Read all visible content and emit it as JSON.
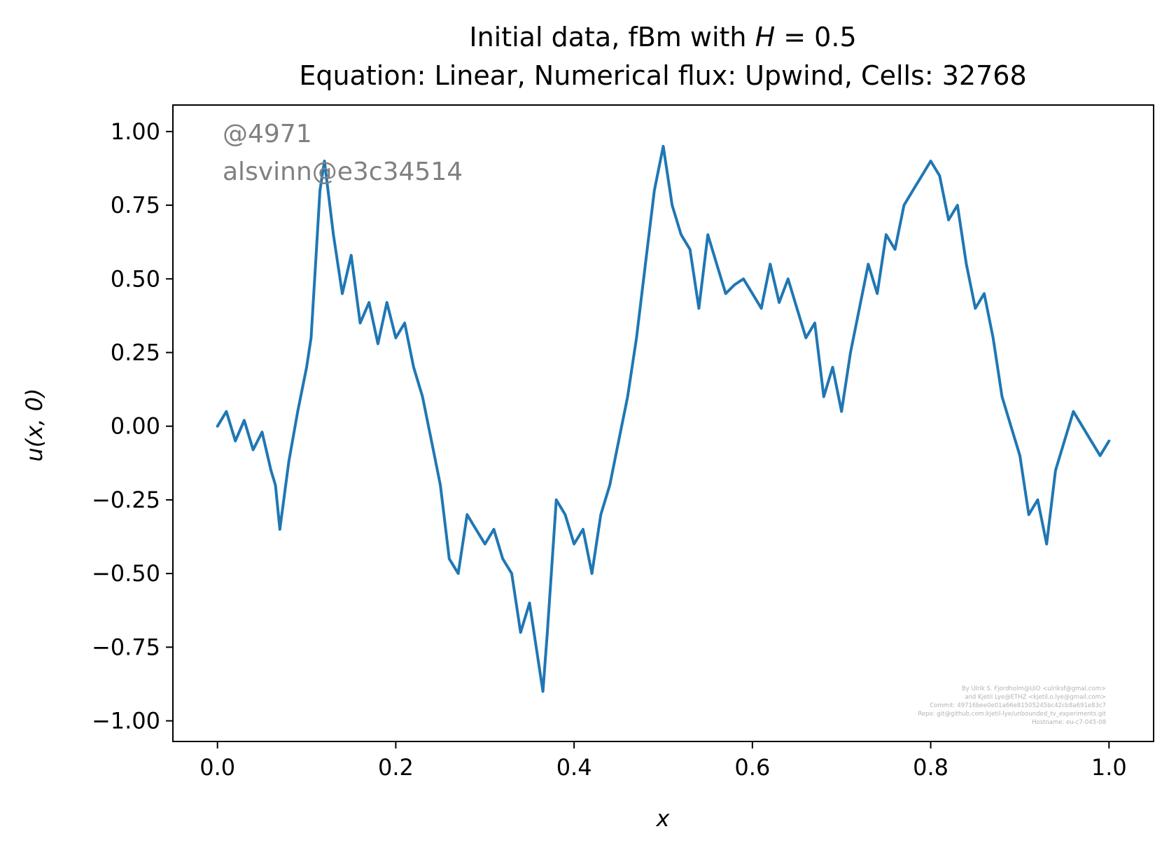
{
  "chart_data": {
    "type": "line",
    "title_line1_prefix": "Initial data, fBm with ",
    "title_line1_var": "H",
    "title_line1_suffix": " = 0.5",
    "title_line2": "Equation: Linear, Numerical flux: Upwind, Cells: 32768",
    "xlabel": "x",
    "ylabel": "u(x, 0)",
    "xlim": [
      -0.05,
      1.05
    ],
    "ylim": [
      -1.07,
      1.09
    ],
    "xticks": [
      0.0,
      0.2,
      0.4,
      0.6,
      0.8,
      1.0
    ],
    "xtick_labels": [
      "0.0",
      "0.2",
      "0.4",
      "0.6",
      "0.8",
      "1.0"
    ],
    "yticks": [
      1.0,
      0.75,
      0.5,
      0.25,
      0.0,
      -0.25,
      -0.5,
      -0.75,
      -1.0
    ],
    "ytick_labels": [
      "1.00",
      "0.75",
      "0.50",
      "0.25",
      "0.00",
      "−0.25",
      "−0.50",
      "−0.75",
      "−1.00"
    ],
    "grid": false,
    "line_color": "#1f77b4",
    "series": [
      {
        "x": [
          0.0,
          0.01,
          0.02,
          0.03,
          0.04,
          0.05,
          0.06,
          0.065,
          0.07,
          0.08,
          0.09,
          0.1,
          0.105,
          0.11,
          0.115,
          0.12,
          0.13,
          0.14,
          0.15,
          0.16,
          0.17,
          0.18,
          0.19,
          0.2,
          0.21,
          0.22,
          0.23,
          0.24,
          0.25,
          0.26,
          0.27,
          0.28,
          0.29,
          0.3,
          0.31,
          0.32,
          0.33,
          0.34,
          0.35,
          0.36,
          0.365,
          0.37,
          0.38,
          0.39,
          0.4,
          0.41,
          0.42,
          0.43,
          0.44,
          0.45,
          0.46,
          0.47,
          0.48,
          0.49,
          0.5,
          0.51,
          0.52,
          0.53,
          0.54,
          0.55,
          0.56,
          0.57,
          0.58,
          0.59,
          0.6,
          0.61,
          0.62,
          0.63,
          0.64,
          0.65,
          0.66,
          0.67,
          0.68,
          0.69,
          0.7,
          0.71,
          0.72,
          0.73,
          0.74,
          0.75,
          0.76,
          0.77,
          0.78,
          0.79,
          0.8,
          0.81,
          0.82,
          0.83,
          0.84,
          0.85,
          0.86,
          0.87,
          0.88,
          0.89,
          0.9,
          0.91,
          0.92,
          0.93,
          0.94,
          0.95,
          0.96,
          0.97,
          0.98,
          0.99,
          1.0
        ],
        "y": [
          0.0,
          0.05,
          -0.05,
          0.02,
          -0.08,
          -0.02,
          -0.15,
          -0.2,
          -0.35,
          -0.12,
          0.05,
          0.2,
          0.3,
          0.55,
          0.8,
          0.9,
          0.65,
          0.45,
          0.58,
          0.35,
          0.42,
          0.28,
          0.42,
          0.3,
          0.35,
          0.2,
          0.1,
          -0.05,
          -0.2,
          -0.45,
          -0.5,
          -0.3,
          -0.35,
          -0.4,
          -0.35,
          -0.45,
          -0.5,
          -0.7,
          -0.6,
          -0.8,
          -0.9,
          -0.7,
          -0.25,
          -0.3,
          -0.4,
          -0.35,
          -0.5,
          -0.3,
          -0.2,
          -0.05,
          0.1,
          0.3,
          0.55,
          0.8,
          0.95,
          0.75,
          0.65,
          0.6,
          0.4,
          0.65,
          0.55,
          0.45,
          0.48,
          0.5,
          0.45,
          0.4,
          0.55,
          0.42,
          0.5,
          0.4,
          0.3,
          0.35,
          0.1,
          0.2,
          0.05,
          0.25,
          0.4,
          0.55,
          0.45,
          0.65,
          0.6,
          0.75,
          0.8,
          0.85,
          0.9,
          0.85,
          0.7,
          0.75,
          0.55,
          0.4,
          0.45,
          0.3,
          0.1,
          0.0,
          -0.1,
          -0.3,
          -0.25,
          -0.4,
          -0.15,
          -0.05,
          0.05,
          0.0,
          -0.05,
          -0.1,
          -0.05
        ]
      }
    ]
  },
  "annotations": {
    "line1": "@4971",
    "line2": "alsvinn@e3c34514"
  },
  "credits": [
    "By Ulrik S. Fjordholm@UiO <ulriksf@gmal.com>",
    "and Kjetil Lye@ETHZ <kjetil.o.lye@gmail.com>",
    "Commit: 49716bee0e01a66e81505245bc42cb8a691e83c7",
    "Repo: git@github.com:kjetil-lye/unbounded_tv_experiments.git",
    "Hostname: eu-c7-045-08"
  ]
}
